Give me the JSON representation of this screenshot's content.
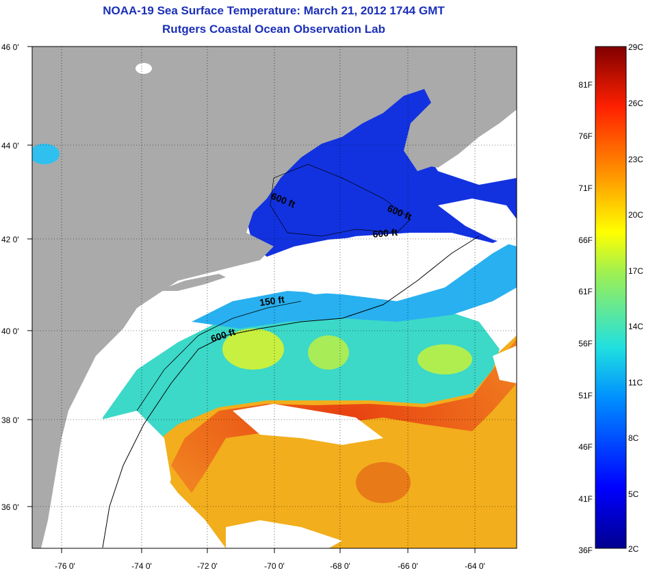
{
  "title": {
    "line1": "NOAA-19 Sea Surface Temperature:  March 21, 2012 1744 GMT",
    "line2": "Rutgers Coastal Ocean Observation Lab"
  },
  "map": {
    "lon_labels": [
      "-76 0'",
      "-74 0'",
      "-72 0'",
      "-70 0'",
      "-68 0'",
      "-66 0'",
      "-64 0'"
    ],
    "lat_labels": [
      "46 0'",
      "44 0'",
      "42 0'",
      "40 0'",
      "38 0'",
      "36 0'"
    ],
    "contour_labels": [
      {
        "text": "600 ft"
      },
      {
        "text": "600 ft"
      },
      {
        "text": "600 ft"
      },
      {
        "text": "150 ft"
      },
      {
        "text": "600 ft"
      }
    ],
    "colors": {
      "land": "#aaaaaa",
      "cloud": "#ffffff",
      "cold": "#1030e0",
      "cool": "#20a8f0",
      "mild": "#50e0c0",
      "warm": "#f0b020",
      "hot": "#e03010"
    }
  },
  "colorbar": {
    "celsius_labels": [
      "29C",
      "26C",
      "23C",
      "20C",
      "17C",
      "14C",
      "11C",
      "8C",
      "5C",
      "2C"
    ],
    "fahrenheit_labels": [
      "81F",
      "76F",
      "71F",
      "66F",
      "61F",
      "56F",
      "51F",
      "46F",
      "41F",
      "36F"
    ]
  }
}
